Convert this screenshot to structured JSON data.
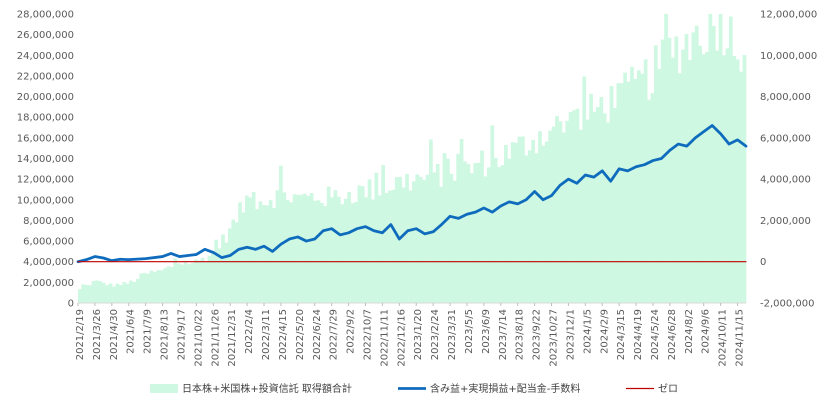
{
  "chart_data": {
    "type": "bar+line",
    "title": "",
    "legend": {
      "position": "bottom",
      "entries": [
        {
          "name": "日本株+米国株+投資信託 取得額合計",
          "symbol": "bar",
          "color": "#cff8e2"
        },
        {
          "name": "含み益+実現損益+配当金-手数料",
          "symbol": "line",
          "color": "#0f6cbd"
        },
        {
          "name": "ゼロ",
          "symbol": "line",
          "color": "#c00000"
        }
      ]
    },
    "y_left": {
      "ylim": [
        0,
        28000000
      ],
      "ticks": [
        0,
        2000000,
        4000000,
        6000000,
        8000000,
        10000000,
        12000000,
        14000000,
        16000000,
        18000000,
        20000000,
        22000000,
        24000000,
        26000000,
        28000000
      ],
      "tick_labels": [
        "0",
        "2,000,000",
        "4,000,000",
        "6,000,000",
        "8,000,000",
        "10,000,000",
        "12,000,000",
        "14,000,000",
        "16,000,000",
        "18,000,000",
        "20,000,000",
        "22,000,000",
        "24,000,000",
        "26,000,000",
        "28,000,000"
      ]
    },
    "y_right": {
      "ylim": [
        -2000000,
        12000000
      ],
      "ticks": [
        -2000000,
        0,
        2000000,
        4000000,
        6000000,
        8000000,
        10000000,
        12000000
      ],
      "tick_labels": [
        "-2,000,000",
        "0",
        "2,000,000",
        "4,000,000",
        "6,000,000",
        "8,000,000",
        "10,000,000",
        "12,000,000"
      ]
    },
    "x_tick_labels": [
      "2021/2/19",
      "2021/3/26",
      "2021/4/30",
      "2021/6/4",
      "2021/7/9",
      "2021/8/13",
      "2021/9/17",
      "2021/10/22",
      "2021/11/26",
      "2021/12/31",
      "2022/2/4",
      "2022/3/11",
      "2022/4/15",
      "2022/5/20",
      "2022/6/24",
      "2022/7/29",
      "2022/9/2",
      "2022/10/7",
      "2022/11/11",
      "2022/12/16",
      "2023/1/20",
      "2023/2/24",
      "2023/3/31",
      "2023/5/5",
      "2023/6/9",
      "2023/7/14",
      "2023/8/18",
      "2023/9/22",
      "2023/10/27",
      "2023/12/1",
      "2024/1/5",
      "2024/2/9",
      "2024/3/15",
      "2024/4/19",
      "2024/5/24",
      "2024/6/28",
      "2024/8/2",
      "2024/9/6",
      "2024/10/11",
      "2024/11/15"
    ],
    "series": [
      {
        "name": "日本株+米国株+投資信託 取得額合計",
        "type": "bar",
        "axis": "left",
        "color": "#cff8e2",
        "anchors": [
          [
            0,
            1200000
          ],
          [
            1,
            2100000
          ],
          [
            2,
            1700000
          ],
          [
            3,
            1900000
          ],
          [
            4,
            2800000
          ],
          [
            5,
            3100000
          ],
          [
            6,
            3900000
          ],
          [
            7,
            3900000
          ],
          [
            8,
            4800000
          ],
          [
            9,
            7000000
          ],
          [
            10,
            10000000
          ],
          [
            11,
            9800000
          ],
          [
            12,
            10500000
          ],
          [
            13,
            10000000
          ],
          [
            14,
            10200000
          ],
          [
            15,
            10100000
          ],
          [
            16,
            10400000
          ],
          [
            17,
            10800000
          ],
          [
            18,
            11000000
          ],
          [
            19,
            11600000
          ],
          [
            20,
            11800000
          ],
          [
            21,
            12200000
          ],
          [
            22,
            12600000
          ],
          [
            23,
            12800000
          ],
          [
            24,
            13500000
          ],
          [
            25,
            14000000
          ],
          [
            26,
            14800000
          ],
          [
            27,
            15800000
          ],
          [
            28,
            16600000
          ],
          [
            29,
            17200000
          ],
          [
            30,
            17800000
          ],
          [
            31,
            19000000
          ],
          [
            32,
            19600000
          ],
          [
            33,
            20800000
          ],
          [
            34,
            22000000
          ],
          [
            35,
            24000000
          ],
          [
            36,
            25000000
          ],
          [
            37,
            26200000
          ],
          [
            38,
            27000000
          ],
          [
            39,
            24800000
          ]
        ]
      },
      {
        "name": "含み益+実現損益+配当金-手数料",
        "type": "line",
        "axis": "right",
        "color": "#0f6cbd",
        "values": [
          [
            0,
            0
          ],
          [
            0.5,
            100000
          ],
          [
            1,
            250000
          ],
          [
            1.5,
            180000
          ],
          [
            2,
            50000
          ],
          [
            2.5,
            120000
          ],
          [
            3,
            100000
          ],
          [
            4,
            150000
          ],
          [
            5,
            250000
          ],
          [
            5.5,
            400000
          ],
          [
            6,
            250000
          ],
          [
            6.5,
            300000
          ],
          [
            7,
            350000
          ],
          [
            7.5,
            600000
          ],
          [
            8,
            450000
          ],
          [
            8.5,
            200000
          ],
          [
            9,
            300000
          ],
          [
            9.5,
            600000
          ],
          [
            10,
            700000
          ],
          [
            10.5,
            600000
          ],
          [
            11,
            750000
          ],
          [
            11.5,
            500000
          ],
          [
            12,
            850000
          ],
          [
            12.5,
            1100000
          ],
          [
            13,
            1200000
          ],
          [
            13.5,
            1000000
          ],
          [
            14,
            1100000
          ],
          [
            14.5,
            1500000
          ],
          [
            15,
            1600000
          ],
          [
            15.5,
            1300000
          ],
          [
            16,
            1400000
          ],
          [
            16.5,
            1600000
          ],
          [
            17,
            1700000
          ],
          [
            17.5,
            1500000
          ],
          [
            18,
            1400000
          ],
          [
            18.5,
            1800000
          ],
          [
            19,
            1100000
          ],
          [
            19.5,
            1500000
          ],
          [
            20,
            1600000
          ],
          [
            20.5,
            1350000
          ],
          [
            21,
            1450000
          ],
          [
            21.5,
            1800000
          ],
          [
            22,
            2200000
          ],
          [
            22.5,
            2100000
          ],
          [
            23,
            2300000
          ],
          [
            23.5,
            2400000
          ],
          [
            24,
            2600000
          ],
          [
            24.5,
            2400000
          ],
          [
            25,
            2700000
          ],
          [
            25.5,
            2900000
          ],
          [
            26,
            2800000
          ],
          [
            26.5,
            3000000
          ],
          [
            27,
            3400000
          ],
          [
            27.5,
            3000000
          ],
          [
            28,
            3200000
          ],
          [
            28.5,
            3700000
          ],
          [
            29,
            4000000
          ],
          [
            29.5,
            3800000
          ],
          [
            30,
            4200000
          ],
          [
            30.5,
            4100000
          ],
          [
            31,
            4400000
          ],
          [
            31.5,
            3900000
          ],
          [
            32,
            4500000
          ],
          [
            32.5,
            4400000
          ],
          [
            33,
            4600000
          ],
          [
            33.5,
            4700000
          ],
          [
            34,
            4900000
          ],
          [
            34.5,
            5000000
          ],
          [
            35,
            5400000
          ],
          [
            35.5,
            5700000
          ],
          [
            36,
            5600000
          ],
          [
            36.5,
            6000000
          ],
          [
            37,
            6300000
          ],
          [
            37.5,
            6600000
          ],
          [
            38,
            6200000
          ],
          [
            38.5,
            5700000
          ],
          [
            39,
            5900000
          ],
          [
            39.5,
            5600000
          ]
        ]
      },
      {
        "name": "ゼロ",
        "type": "line",
        "axis": "right",
        "color": "#c00000",
        "values": [
          [
            0,
            0
          ],
          [
            39.5,
            0
          ]
        ]
      }
    ]
  }
}
